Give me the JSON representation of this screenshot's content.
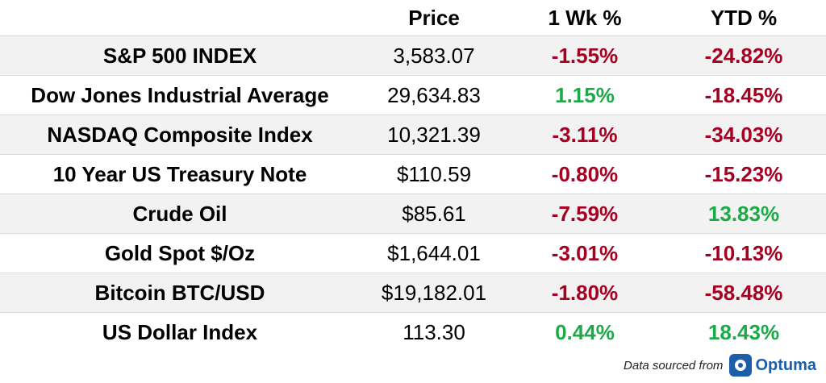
{
  "header": {
    "col_name": "",
    "col_price": "Price",
    "col_week": "1 Wk %",
    "col_ytd": "YTD %"
  },
  "rows": [
    {
      "name": "S&P 500 INDEX",
      "price": "3,583.07",
      "week": "-1.55%",
      "ytd": "-24.82%",
      "week_dir": "neg",
      "ytd_dir": "neg"
    },
    {
      "name": "Dow Jones Industrial Average",
      "price": "29,634.83",
      "week": "1.15%",
      "ytd": "-18.45%",
      "week_dir": "pos",
      "ytd_dir": "neg"
    },
    {
      "name": "NASDAQ Composite Index",
      "price": "10,321.39",
      "week": "-3.11%",
      "ytd": "-34.03%",
      "week_dir": "neg",
      "ytd_dir": "neg"
    },
    {
      "name": "10 Year US Treasury Note",
      "price": "$110.59",
      "week": "-0.80%",
      "ytd": "-15.23%",
      "week_dir": "neg",
      "ytd_dir": "neg"
    },
    {
      "name": "Crude Oil",
      "price": "$85.61",
      "week": "-7.59%",
      "ytd": "13.83%",
      "week_dir": "neg",
      "ytd_dir": "pos"
    },
    {
      "name": "Gold Spot $/Oz",
      "price": "$1,644.01",
      "week": "-3.01%",
      "ytd": "-10.13%",
      "week_dir": "neg",
      "ytd_dir": "neg"
    },
    {
      "name": "Bitcoin BTC/USD",
      "price": "$19,182.01",
      "week": "-1.80%",
      "ytd": "-58.48%",
      "week_dir": "neg",
      "ytd_dir": "neg"
    },
    {
      "name": "US Dollar Index",
      "price": "113.30",
      "week": "0.44%",
      "ytd": "18.43%",
      "week_dir": "pos",
      "ytd_dir": "pos"
    }
  ],
  "colors": {
    "negative": "#a50021",
    "positive": "#1ea948",
    "alt_row": "#f2f2f2",
    "brand": "#1a5fa8"
  },
  "footer": {
    "source_text": "Data sourced from",
    "logo_text": "Optuma",
    "logo_icon": "optuma-logo-icon"
  }
}
